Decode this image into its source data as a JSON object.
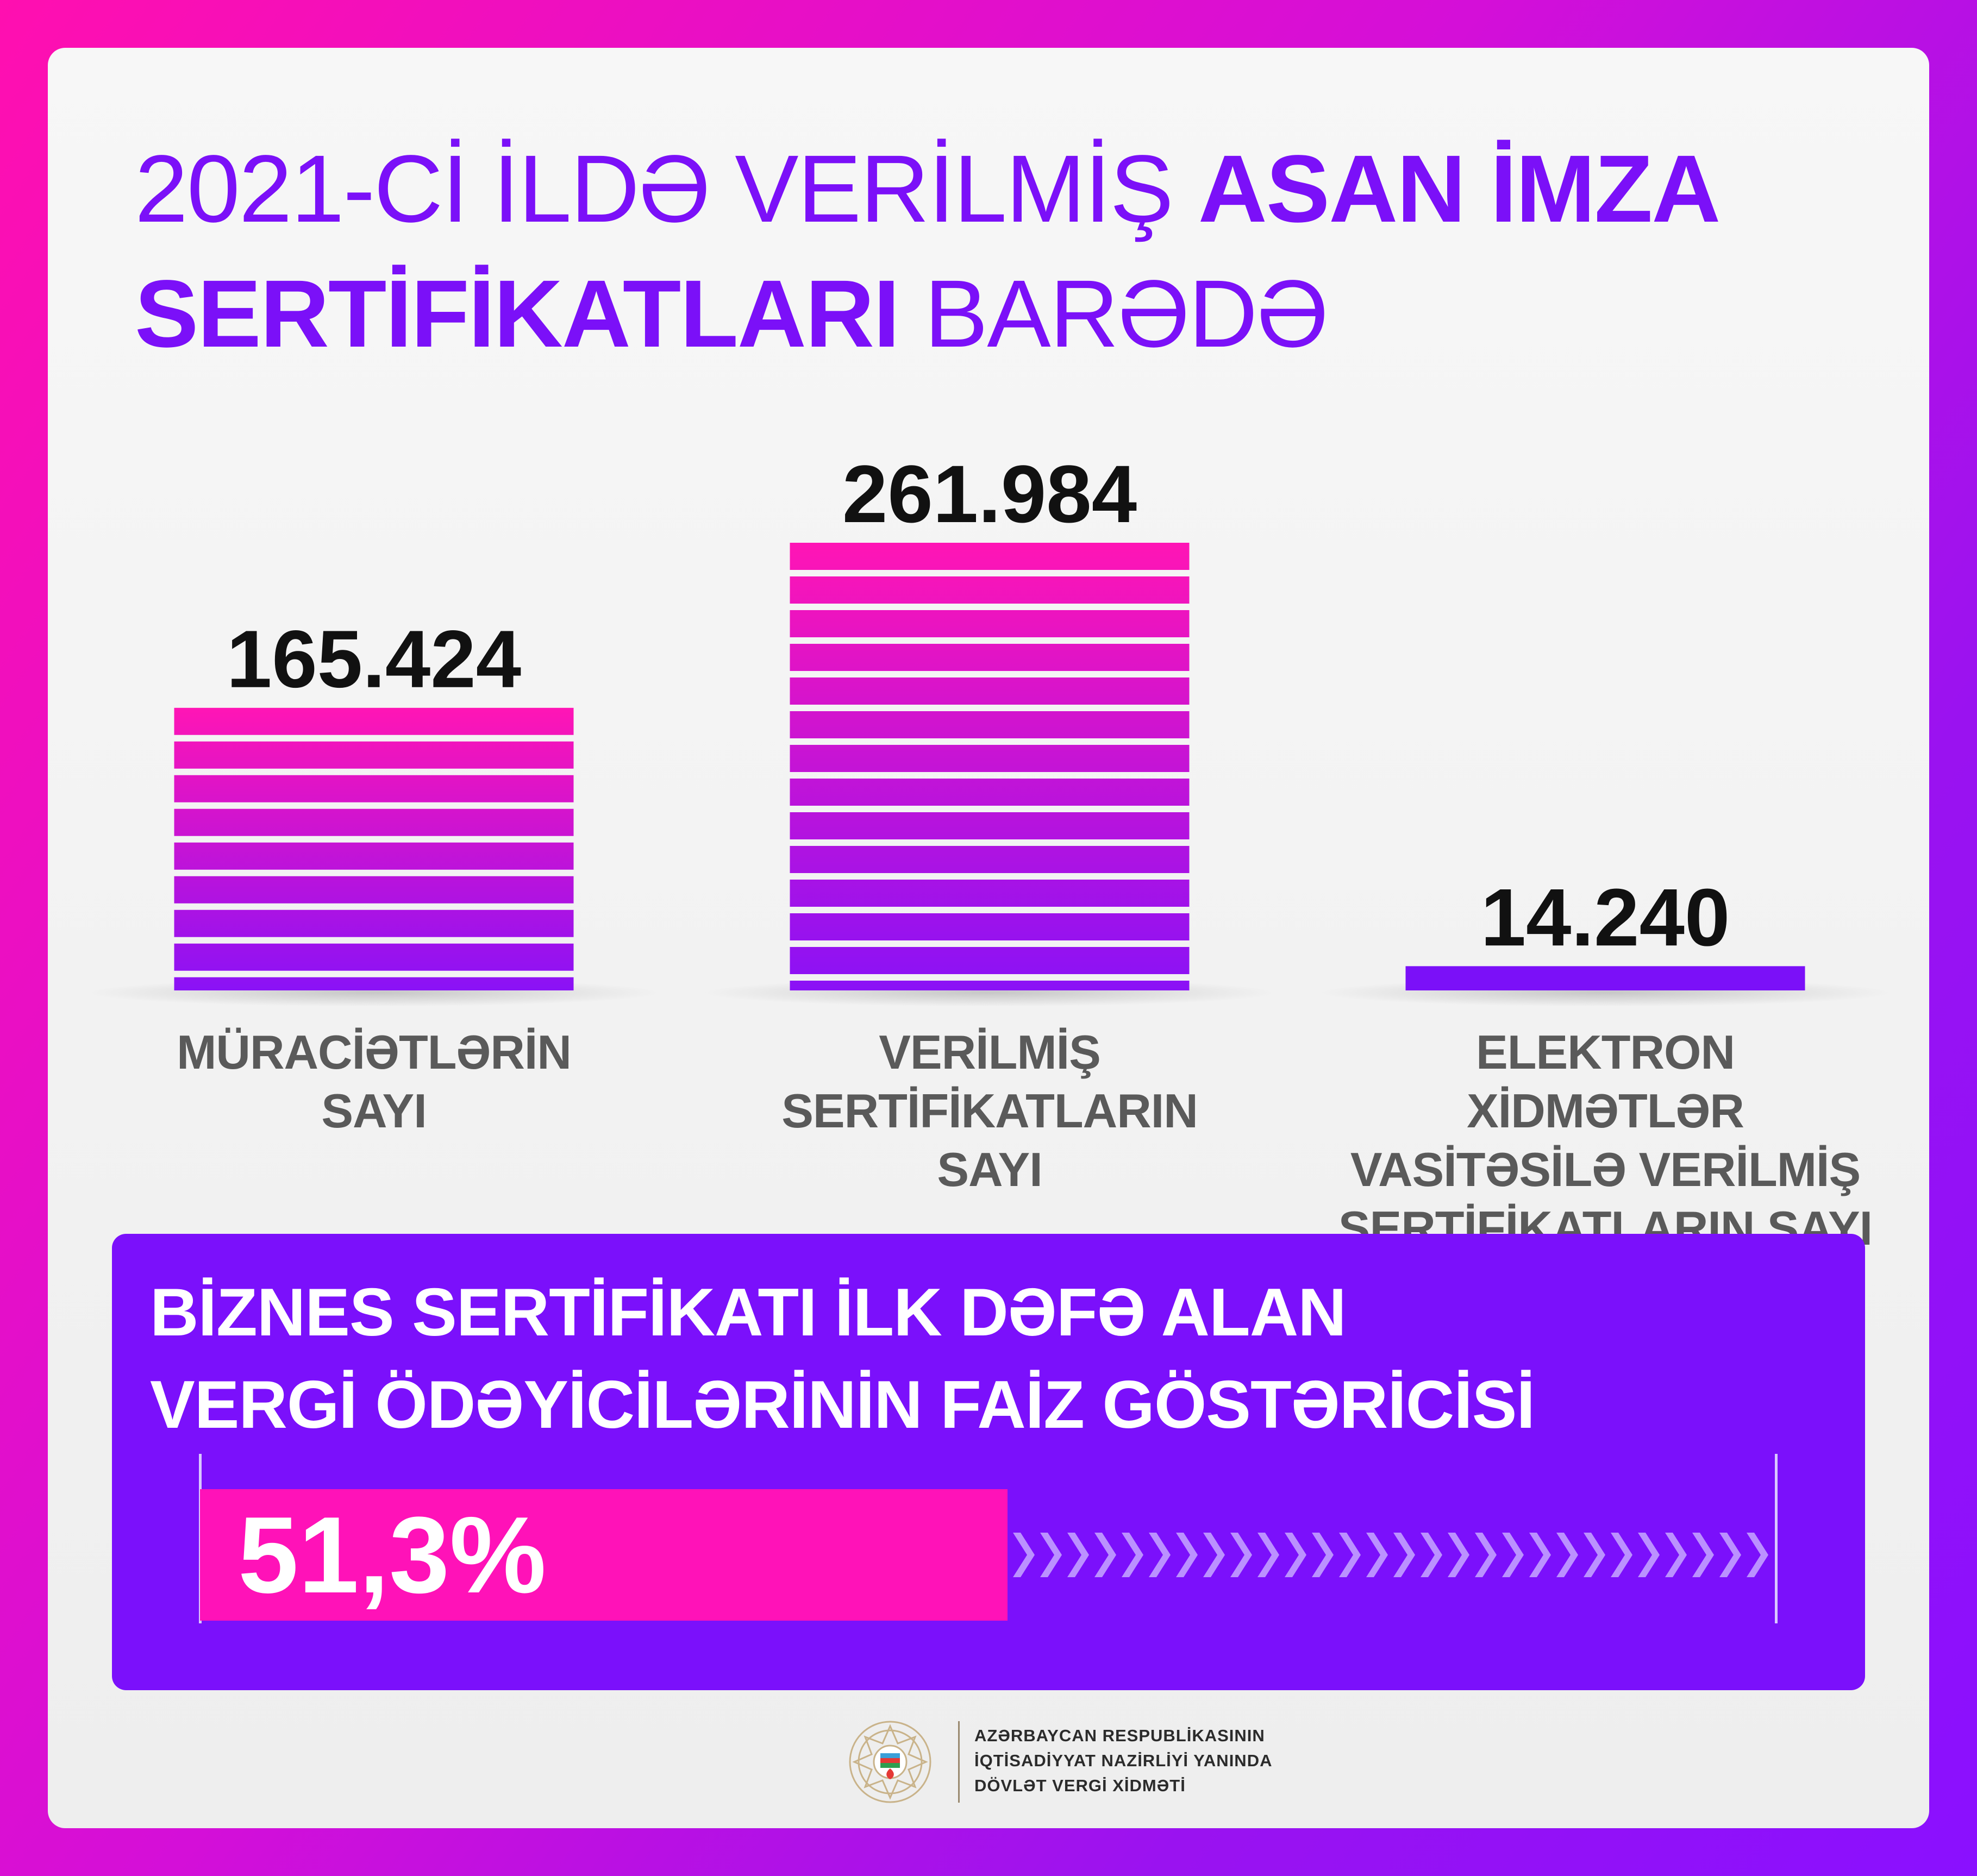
{
  "title": {
    "part1": "2021-Cİ İLDƏ VERİLMİŞ ",
    "part2": "ASAN İMZA",
    "part3": "SERTİFİKATLARI",
    "part4": " BARƏDƏ"
  },
  "chart_data": {
    "type": "bar",
    "categories": [
      "MÜRACİƏTLƏRİN SAYI",
      "VERİLMİŞ SERTİFİKATLARIN SAYI",
      "ELEKTRON XİDMƏTLƏR VASİTƏSİLƏ VERİLMİŞ SERTİFİKATLARIN SAYI"
    ],
    "category_lines": [
      [
        "MÜRACİƏTLƏRİN",
        "SAYI"
      ],
      [
        "VERİLMİŞ",
        "SERTİFİKATLARIN",
        "SAYI"
      ],
      [
        "ELEKTRON XİDMƏTLƏR",
        "VASİTƏSİLƏ VERİLMİŞ",
        "SERTİFİKATLARIN SAYI"
      ]
    ],
    "values": [
      165424,
      261984,
      14240
    ],
    "value_labels": [
      "165.424",
      "261.984",
      "14.240"
    ],
    "title": "",
    "xlabel": "",
    "ylabel": "",
    "ylim": [
      0,
      261984
    ],
    "grid": false,
    "legend": "none"
  },
  "colors": {
    "accent": "#7b10f8",
    "pink": "#ff12b8",
    "bar_top": "#ff15b5",
    "bar_bottom": "#8a12f6"
  },
  "percent_panel": {
    "title_line1": "BİZNES SERTİFİKATI İLK DƏFƏ ALAN",
    "title_line2": "VERGİ ÖDƏYİCİLƏRİNİN FAİZ GÖSTƏRİCİSİ",
    "value_label": "51,3%",
    "value": 51.3
  },
  "footer": {
    "emblem_icon": "azerbaijan-emblem-icon",
    "line1": "AZƏRBAYCAN RESPUBLİKASININ",
    "line2": "İQTİSADİYYAT NAZİRLİYİ YANINDA",
    "line3": "DÖVLƏT VERGİ XİDMƏTİ"
  }
}
